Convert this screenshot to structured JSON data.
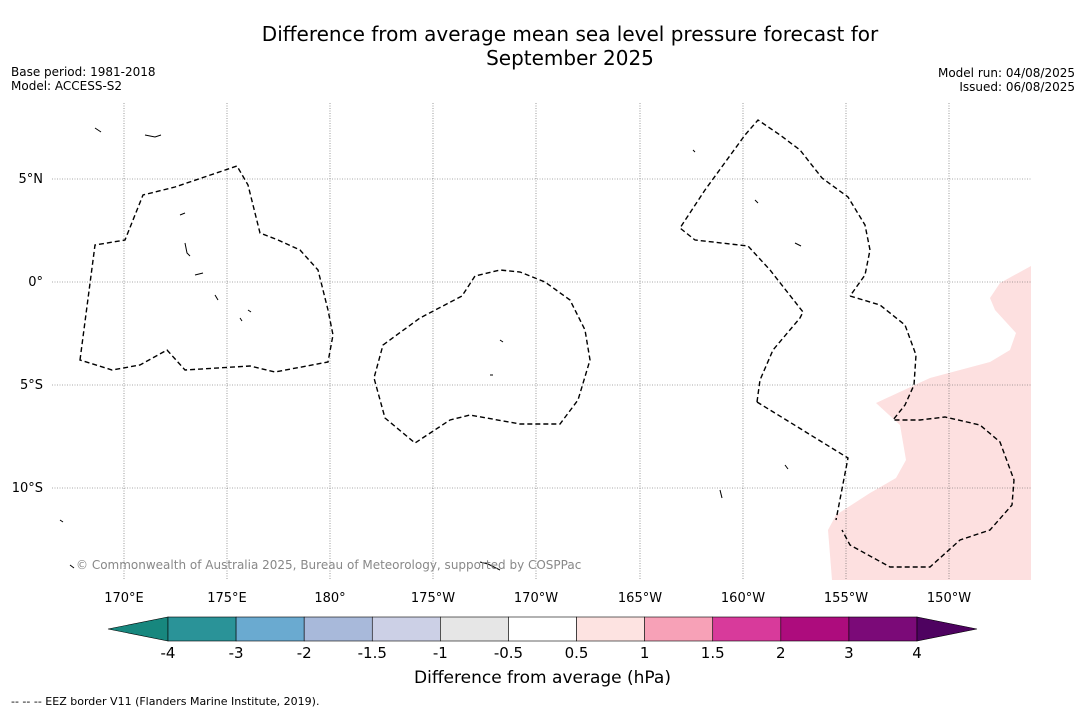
{
  "title_line1": "Difference from average mean sea level pressure forecast for",
  "title_line2": "September 2025",
  "base_period": "Base period: 1981-2018",
  "model": "Model: ACCESS-S2",
  "model_run": "Model run: 04/08/2025",
  "issued": "Issued: 06/08/2025",
  "copyright": "© Commonwealth of Australia 2025, Bureau of Meteorology, supported by COSPPac",
  "footnote": "--  --  -- EEZ border V11 (Flanders Marine Institute, 2019).",
  "colorbar": {
    "label": "Difference from average (hPa)",
    "ticks": [
      "-4",
      "-3",
      "-2",
      "-1.5",
      "-1",
      "-0.5",
      "0.5",
      "1",
      "1.5",
      "2",
      "3",
      "4"
    ],
    "colors": [
      "#17877e",
      "#2a9398",
      "#6aaad0",
      "#a8b9da",
      "#ccd0e6",
      "#e6e6e6",
      "#ffffff",
      "#fde3e1",
      "#f7a1b7",
      "#d83a9b",
      "#ad0c7d",
      "#7b0a78",
      "#4e0260"
    ]
  },
  "map": {
    "lat_labels": [
      "5°N",
      "0°",
      "5°S",
      "10°S"
    ],
    "lon_labels": [
      "170°E",
      "175°E",
      "180°",
      "175°W",
      "170°W",
      "165°W",
      "160°W",
      "155°W",
      "150°W"
    ],
    "anomaly_fill_color": "#fde0e0"
  }
}
